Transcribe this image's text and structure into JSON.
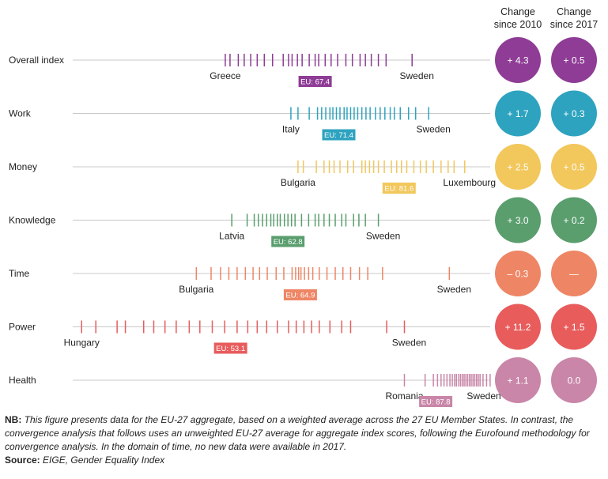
{
  "chart_data": {
    "type": "strip",
    "x_unit": "index score",
    "headers": {
      "col1": [
        "Change",
        "since 2010"
      ],
      "col2": [
        "Change",
        "since 2017"
      ]
    },
    "colors": {
      "Overall index": "#8e3c96",
      "Work": "#2ea3bf",
      "Money": "#f2c75c",
      "Knowledge": "#5a9e6e",
      "Time": "#ee8665",
      "Power": "#e85c5c",
      "Health": "#c986a8"
    },
    "domains": [
      {
        "name": "Overall index",
        "min_country": "Greece",
        "max_country": "Sweden",
        "eu_label": "EU: 67.4",
        "eu_value": 67.4,
        "change_2010": "+ 4.3",
        "change_2017": "+ 0.5",
        "scores": [
          52.2,
          53.0,
          54.4,
          55.4,
          56.5,
          57.6,
          58.8,
          60.2,
          62.0,
          62.9,
          63.5,
          64.4,
          65.2,
          66.4,
          67.4,
          68.0,
          69.1,
          70.1,
          71.2,
          72.6,
          73.7,
          75.0,
          75.9,
          76.9,
          78.1,
          79.4,
          83.8
        ]
      },
      {
        "name": "Work",
        "min_country": "Italy",
        "max_country": "Sweden",
        "eu_label": "EU: 71.4",
        "eu_value": 71.4,
        "scores": [
          63.3,
          64.5,
          66.4,
          67.8,
          68.5,
          69.2,
          69.9,
          70.4,
          71.0,
          71.6,
          72.3,
          72.8,
          73.4,
          74.0,
          74.6,
          75.3,
          76.0,
          76.7,
          77.6,
          78.4,
          79.2,
          80.1,
          80.8,
          81.8,
          83.2,
          84.4,
          86.6
        ],
        "change_2010": "+ 1.7",
        "change_2017": "+ 0.3"
      },
      {
        "name": "Money",
        "min_country": "Bulgaria",
        "max_country": "Luxembourg",
        "eu_label": "EU: 81.6",
        "eu_value": 81.6,
        "scores": [
          64.5,
          65.4,
          67.6,
          68.9,
          69.8,
          70.6,
          71.6,
          72.9,
          73.9,
          75.3,
          75.9,
          76.6,
          77.3,
          78.1,
          79.1,
          80.3,
          81.2,
          82.0,
          82.9,
          84.1,
          85.2,
          86.2,
          87.4,
          88.7,
          89.9,
          90.9,
          92.7
        ],
        "change_2010": "+ 2.5",
        "change_2017": "+ 0.5"
      },
      {
        "name": "Knowledge",
        "min_country": "Latvia",
        "max_country": "Sweden",
        "eu_label": "EU: 62.8",
        "eu_value": 62.8,
        "scores": [
          53.3,
          55.9,
          57.1,
          57.8,
          58.5,
          59.2,
          59.9,
          60.4,
          61.0,
          61.5,
          62.2,
          62.8,
          63.4,
          64.0,
          65.1,
          66.3,
          67.4,
          68.0,
          68.9,
          69.8,
          70.8,
          71.9,
          72.6,
          73.9,
          74.8,
          75.9,
          78.1
        ],
        "change_2010": "+ 3.0",
        "change_2017": "+ 0.2"
      },
      {
        "name": "Time",
        "min_country": "Bulgaria",
        "max_country": "Sweden",
        "eu_label": "EU: 64.9",
        "eu_value": 64.9,
        "scores": [
          47.3,
          49.8,
          51.4,
          52.8,
          54.2,
          55.6,
          56.9,
          58.0,
          59.3,
          60.8,
          62.1,
          63.5,
          64.1,
          64.6,
          65.0,
          65.6,
          66.3,
          67.0,
          68.1,
          69.4,
          70.8,
          72.1,
          73.4,
          74.9,
          76.3,
          78.8,
          90.1
        ],
        "change_2010": "– 0.3",
        "change_2017": "—"
      },
      {
        "name": "Power",
        "min_country": "Hungary",
        "max_country": "Sweden",
        "eu_label": "EU: 53.1",
        "eu_value": 53.1,
        "scores": [
          27.9,
          30.3,
          33.9,
          35.3,
          38.4,
          40.1,
          42.0,
          43.9,
          46.1,
          47.9,
          50.0,
          52.1,
          54.2,
          56.0,
          57.6,
          59.2,
          61.0,
          62.9,
          64.2,
          65.5,
          66.8,
          68.1,
          69.9,
          71.9,
          73.4,
          79.5,
          82.5
        ],
        "change_2010": "+ 11.2",
        "change_2017": "+ 1.5"
      },
      {
        "name": "Health",
        "min_country": "Romania",
        "max_country": "Sweden",
        "eu_label": "EU: 87.8",
        "eu_value": 87.8,
        "scores": [
          82.5,
          86.0,
          87.4,
          88.1,
          88.7,
          89.2,
          89.7,
          90.2,
          90.6,
          91.0,
          91.3,
          91.7,
          92.0,
          92.3,
          92.6,
          92.9,
          93.2,
          93.5,
          93.8,
          94.1,
          94.4,
          94.7,
          95.0,
          95.3,
          95.8,
          96.4,
          97.0
        ],
        "change_2010": "+ 1.1",
        "change_2017": "0.0"
      }
    ]
  },
  "notes": {
    "nb_label": "NB:",
    "nb_text": "This figure presents data for the EU-27 aggregate, based on a weighted average across the 27 EU Member States. In contrast, the convergence analysis that follows uses an unweighted EU-27 average for aggregate index scores, following the Eurofound methodology for convergence analysis. In the domain of time, no new data were available in 2017.",
    "source_label": "Source:",
    "source_text": "EIGE, Gender Equality Index"
  }
}
